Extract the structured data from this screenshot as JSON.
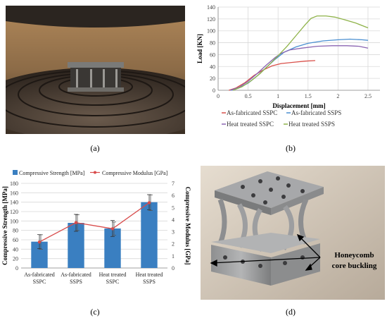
{
  "panels": {
    "a": {
      "label": "(a)"
    },
    "b": {
      "label": "(b)"
    },
    "c": {
      "label": "(c)"
    },
    "d": {
      "label": "(d)"
    }
  },
  "photo_d": {
    "annotation_line1": "Honeycomb",
    "annotation_line2": "core buckling"
  },
  "chart_data": [
    {
      "type": "line",
      "xlabel": "Displacement [mm]",
      "ylabel": "Load [KN]",
      "xlim": [
        0,
        2.7
      ],
      "ylim": [
        0,
        140
      ],
      "x_ticks": [
        "0",
        "0.5",
        "1",
        "1.5",
        "2",
        "2.5"
      ],
      "y_ticks": [
        "0",
        "20",
        "40",
        "60",
        "80",
        "100",
        "120",
        "140"
      ],
      "grid": true,
      "legend_position": "bottom",
      "series": [
        {
          "name": "As-fabricated SSPC",
          "color": "#d9504a",
          "points": [
            [
              0.18,
              0
            ],
            [
              0.3,
              4
            ],
            [
              0.45,
              13
            ],
            [
              0.6,
              25
            ],
            [
              0.75,
              34
            ],
            [
              0.9,
              41
            ],
            [
              1.05,
              45
            ],
            [
              1.25,
              47
            ],
            [
              1.45,
              49
            ],
            [
              1.62,
              50
            ]
          ]
        },
        {
          "name": "As-fabricated SSPS",
          "color": "#4a8fd1",
          "points": [
            [
              0.22,
              0
            ],
            [
              0.35,
              4
            ],
            [
              0.5,
              12
            ],
            [
              0.65,
              24
            ],
            [
              0.8,
              38
            ],
            [
              0.95,
              52
            ],
            [
              1.1,
              64
            ],
            [
              1.3,
              73
            ],
            [
              1.5,
              79
            ],
            [
              1.75,
              83
            ],
            [
              2.0,
              85
            ],
            [
              2.2,
              86
            ],
            [
              2.4,
              85
            ],
            [
              2.5,
              84
            ]
          ]
        },
        {
          "name": "Heat treated SSPC",
          "color": "#8b65b2",
          "points": [
            [
              0.2,
              0
            ],
            [
              0.35,
              5
            ],
            [
              0.5,
              15
            ],
            [
              0.65,
              28
            ],
            [
              0.8,
              42
            ],
            [
              0.95,
              55
            ],
            [
              1.05,
              62
            ],
            [
              1.2,
              68
            ],
            [
              1.4,
              71
            ],
            [
              1.65,
              74
            ],
            [
              1.9,
              75
            ],
            [
              2.15,
              75
            ],
            [
              2.35,
              74
            ],
            [
              2.5,
              71
            ]
          ]
        },
        {
          "name": "Heat treated SSPS",
          "color": "#8fb34a",
          "points": [
            [
              0.25,
              0
            ],
            [
              0.4,
              6
            ],
            [
              0.55,
              16
            ],
            [
              0.7,
              28
            ],
            [
              0.85,
              43
            ],
            [
              1.0,
              58
            ],
            [
              1.15,
              74
            ],
            [
              1.3,
              92
            ],
            [
              1.45,
              110
            ],
            [
              1.55,
              121
            ],
            [
              1.65,
              125
            ],
            [
              1.8,
              125
            ],
            [
              1.95,
              123
            ],
            [
              2.1,
              119
            ],
            [
              2.3,
              113
            ],
            [
              2.5,
              105
            ]
          ]
        }
      ]
    },
    {
      "type": "bar",
      "categories": [
        "As-fabricated\nSSPC",
        "As-fabricated\nSSPS",
        "Heat treated\nSSPC",
        "Heat treated\nSSPS"
      ],
      "ylabel": "Compressive Strength [MPa]",
      "y2label": "Compressive  Modulus [GPa]",
      "ylim": [
        0,
        180
      ],
      "y2lim": [
        0,
        7
      ],
      "y_ticks": [
        "0",
        "20",
        "40",
        "60",
        "80",
        "100",
        "120",
        "140",
        "160",
        "180"
      ],
      "y2_ticks": [
        "0",
        "1",
        "2",
        "3",
        "4",
        "5",
        "6",
        "7"
      ],
      "grid": true,
      "legend_position": "top",
      "series": [
        {
          "name": "Compressive Strength [MPa]",
          "axis": "left",
          "type": "bar",
          "color": "#3a7fc1",
          "values": [
            56,
            96,
            84,
            140
          ],
          "errors": [
            15,
            18,
            17,
            16
          ]
        },
        {
          "name": "Compressive Modulus [GPa]",
          "axis": "right",
          "type": "line",
          "color": "#d84a4a",
          "values": [
            2.15,
            3.75,
            3.25,
            5.4
          ],
          "errors": [
            0.6,
            0.65,
            0.55,
            0.65
          ]
        }
      ]
    }
  ]
}
